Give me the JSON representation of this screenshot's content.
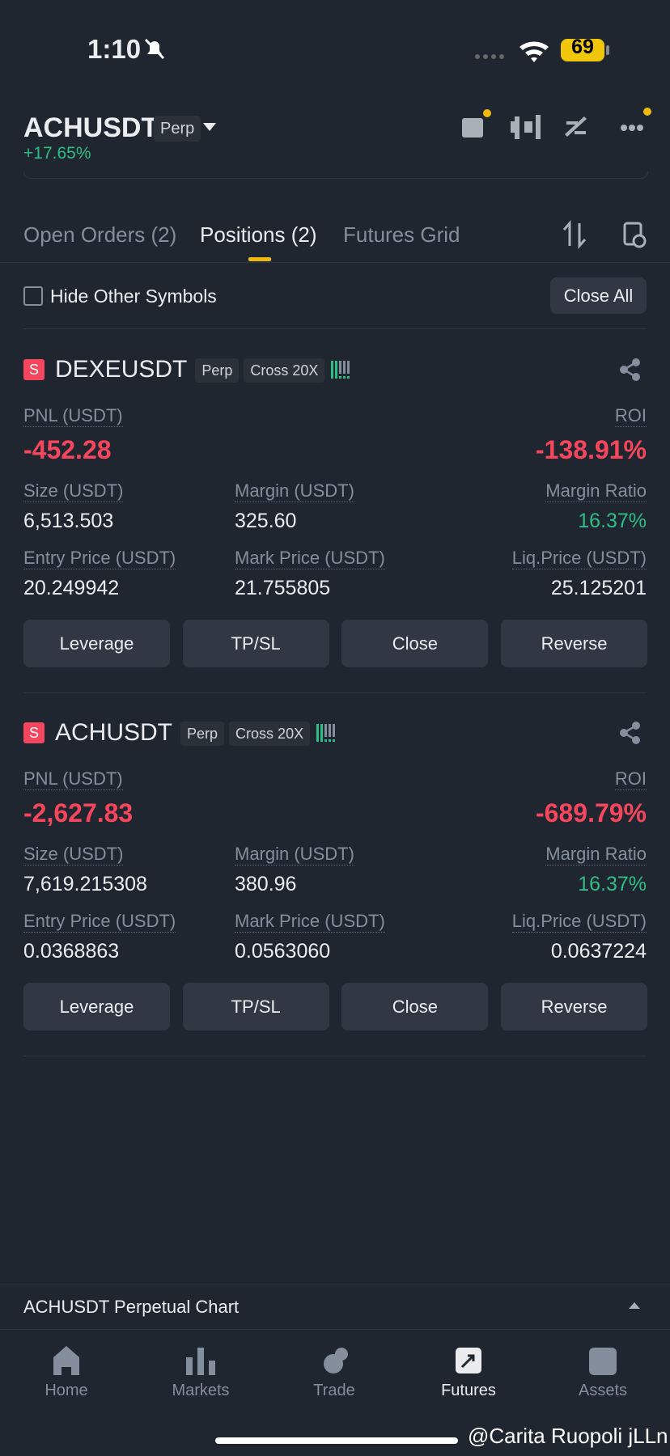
{
  "status_bar": {
    "time": "1:10",
    "battery": "69"
  },
  "header": {
    "symbol": "ACHUSDT",
    "badge": "Perp",
    "change": "+17.65%"
  },
  "tabs": [
    "Open Orders (2)",
    "Positions (2)",
    "Futures Grid"
  ],
  "filter": {
    "checkbox_label": "Hide Other Symbols",
    "close_all": "Close All"
  },
  "positions": [
    {
      "side": "S",
      "symbol": "DEXEUSDT",
      "type": "Perp",
      "margin_mode": "Cross 20X",
      "pnl": {
        "label": "PNL (USDT)",
        "value": "-452.28"
      },
      "roi": {
        "label": "ROI",
        "value": "-138.91%"
      },
      "size": {
        "label": "Size (USDT)",
        "value": "6,513.503"
      },
      "margin": {
        "label": "Margin (USDT)",
        "value": "325.60"
      },
      "margin_ratio": {
        "label": "Margin Ratio",
        "value": "16.37%"
      },
      "entry_price": {
        "label": "Entry Price (USDT)",
        "value": "20.249942"
      },
      "mark_price": {
        "label": "Mark Price (USDT)",
        "value": "21.755805"
      },
      "liq_price": {
        "label": "Liq.Price (USDT)",
        "value": "25.125201"
      },
      "buttons": [
        "Leverage",
        "TP/SL",
        "Close",
        "Reverse"
      ]
    },
    {
      "side": "S",
      "symbol": "ACHUSDT",
      "type": "Perp",
      "margin_mode": "Cross 20X",
      "pnl": {
        "label": "PNL (USDT)",
        "value": "-2,627.83"
      },
      "roi": {
        "label": "ROI",
        "value": "-689.79%"
      },
      "size": {
        "label": "Size (USDT)",
        "value": "7,619.215308"
      },
      "margin": {
        "label": "Margin (USDT)",
        "value": "380.96"
      },
      "margin_ratio": {
        "label": "Margin Ratio",
        "value": "16.37%"
      },
      "entry_price": {
        "label": "Entry Price (USDT)",
        "value": "0.0368863"
      },
      "mark_price": {
        "label": "Mark Price (USDT)",
        "value": "0.0563060"
      },
      "liq_price": {
        "label": "Liq.Price (USDT)",
        "value": "0.0637224"
      },
      "buttons": [
        "Leverage",
        "TP/SL",
        "Close",
        "Reverse"
      ]
    }
  ],
  "chart_bar": "ACHUSDT Perpetual  Chart",
  "nav": [
    "Home",
    "Markets",
    "Trade",
    "Futures",
    "Assets"
  ],
  "watermark": "@Carita Ruopoli jLLn"
}
